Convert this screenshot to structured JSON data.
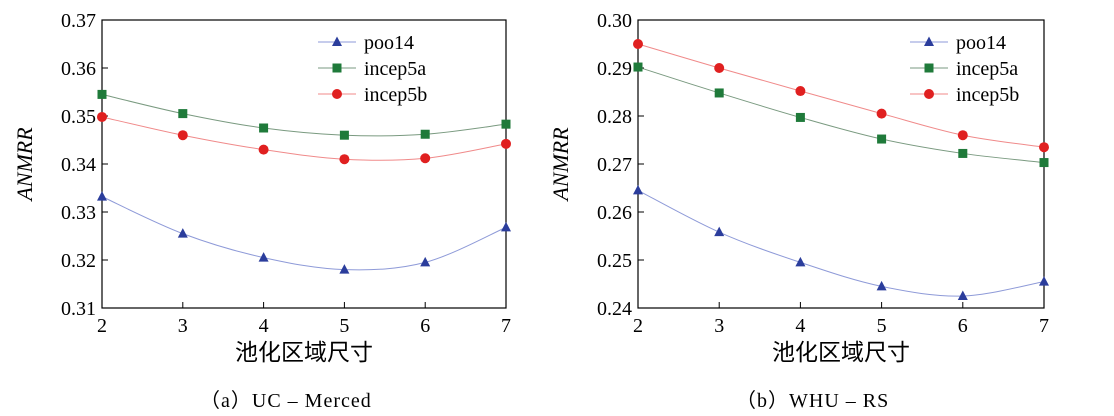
{
  "chart_data": [
    {
      "type": "line",
      "caption": "（a）UC – Merced",
      "xlabel": "池化区域尺寸",
      "ylabel": "ANMRR",
      "x": [
        2,
        3,
        4,
        5,
        6,
        7
      ],
      "xlim": [
        2,
        7
      ],
      "ylim": [
        0.31,
        0.37
      ],
      "xticks": [
        "2",
        "3",
        "4",
        "5",
        "6",
        "7"
      ],
      "yticks": [
        "0.31",
        "0.32",
        "0.33",
        "0.34",
        "0.35",
        "0.36",
        "0.37"
      ],
      "grid": false,
      "legend_position": "top-right",
      "series": [
        {
          "name": "poo14",
          "marker": "triangle",
          "color": "#2b3d9c",
          "line_color": "#8e9ad8",
          "values": [
            0.3332,
            0.3255,
            0.3205,
            0.318,
            0.3195,
            0.3268
          ]
        },
        {
          "name": "incep5a",
          "marker": "square",
          "color": "#1f7a3a",
          "line_color": "#7a9a80",
          "values": [
            0.3545,
            0.3505,
            0.3475,
            0.346,
            0.3462,
            0.3483
          ]
        },
        {
          "name": "incep5b",
          "marker": "circle",
          "color": "#e02020",
          "line_color": "#f08a8a",
          "values": [
            0.3498,
            0.346,
            0.343,
            0.341,
            0.3412,
            0.3442
          ]
        }
      ]
    },
    {
      "type": "line",
      "caption": "（b）WHU – RS",
      "xlabel": "池化区域尺寸",
      "ylabel": "ANMRR",
      "x": [
        2,
        3,
        4,
        5,
        6,
        7
      ],
      "xlim": [
        2,
        7
      ],
      "ylim": [
        0.24,
        0.3
      ],
      "xticks": [
        "2",
        "3",
        "4",
        "5",
        "6",
        "7"
      ],
      "yticks": [
        "0.24",
        "0.25",
        "0.26",
        "0.27",
        "0.28",
        "0.29",
        "0.30"
      ],
      "grid": false,
      "legend_position": "top-right",
      "series": [
        {
          "name": "poo14",
          "marker": "triangle",
          "color": "#2b3d9c",
          "line_color": "#8e9ad8",
          "values": [
            0.2645,
            0.2558,
            0.2495,
            0.2445,
            0.2425,
            0.2455
          ]
        },
        {
          "name": "incep5a",
          "marker": "square",
          "color": "#1f7a3a",
          "line_color": "#7a9a80",
          "values": [
            0.2902,
            0.2848,
            0.2797,
            0.2752,
            0.2722,
            0.2703
          ]
        },
        {
          "name": "incep5b",
          "marker": "circle",
          "color": "#e02020",
          "line_color": "#f08a8a",
          "values": [
            0.295,
            0.29,
            0.2852,
            0.2805,
            0.276,
            0.2735
          ]
        }
      ]
    }
  ]
}
